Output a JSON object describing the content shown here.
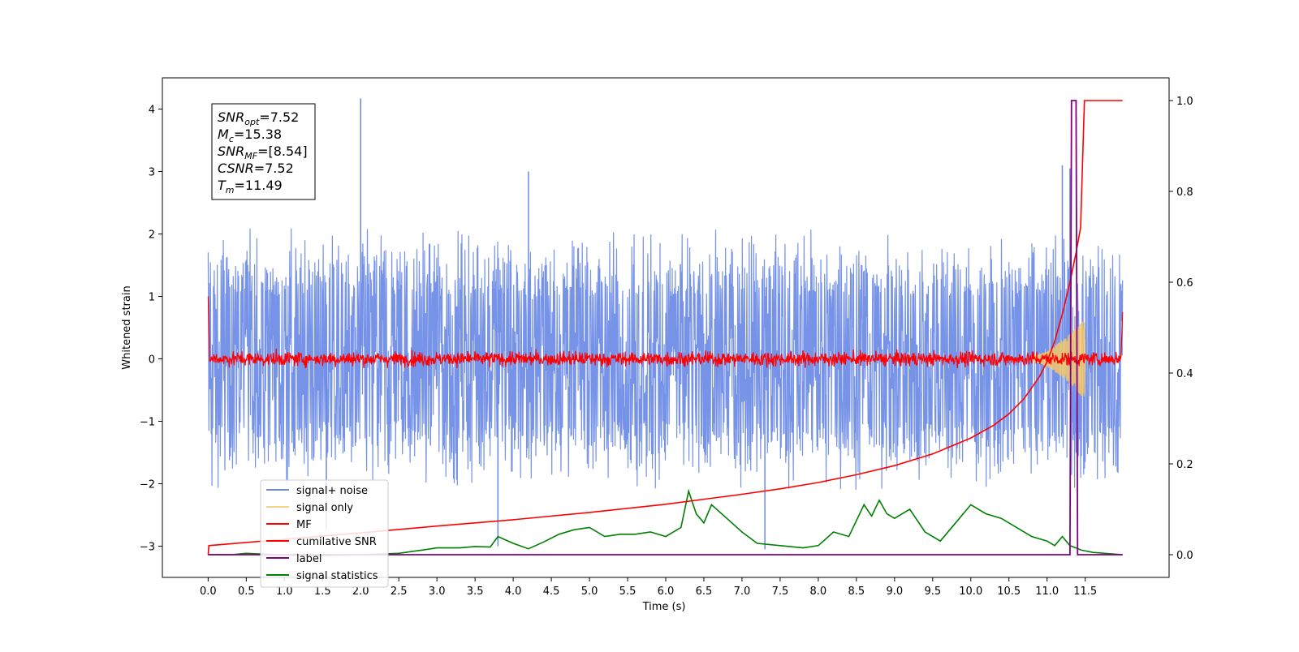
{
  "chart_data": {
    "type": "line",
    "xlabel": "Time (s)",
    "ylabel": "Whitened strain",
    "xlim": [
      -0.6,
      12.6
    ],
    "ylim": [
      -3.5,
      4.5
    ],
    "y2lim": [
      -0.05,
      1.05
    ],
    "x_ticks": [
      0.0,
      0.5,
      1.0,
      1.5,
      2.0,
      2.5,
      3.0,
      3.5,
      4.0,
      4.5,
      5.0,
      5.5,
      6.0,
      6.5,
      7.0,
      7.5,
      8.0,
      8.5,
      9.0,
      9.5,
      10.0,
      10.5,
      11.0,
      11.5
    ],
    "x_tick_labels": [
      "0.0",
      "0.5",
      "1.0",
      "1.5",
      "2.0",
      "2.5",
      "3.0",
      "3.5",
      "4.0",
      "4.5",
      "5.0",
      "5.5",
      "6.0",
      "6.5",
      "7.0",
      "7.5",
      "8.0",
      "8.5",
      "9.0",
      "9.5",
      "10.0",
      "10.5",
      "11.0",
      "11.5"
    ],
    "y_ticks": [
      -3,
      -2,
      -1,
      0,
      1,
      2,
      3,
      4
    ],
    "y_tick_labels": [
      "−3",
      "−2",
      "−1",
      "0",
      "1",
      "2",
      "3",
      "4"
    ],
    "y2_ticks": [
      0.0,
      0.2,
      0.4,
      0.6,
      0.8,
      1.0
    ],
    "y2_tick_labels": [
      "0.0",
      "0.2",
      "0.4",
      "0.6",
      "0.8",
      "1.0"
    ],
    "grid": false,
    "legend_position": "lower-left",
    "annotation_lines": [
      {
        "name": "SNR",
        "sub": "opt",
        "value": "=7.52"
      },
      {
        "name": "M",
        "sub": "c",
        "value": "=15.38"
      },
      {
        "name": "SNR",
        "sub": "MF",
        "value": "=[8.54]"
      },
      {
        "name": "CSNR",
        "sub": "",
        "value": "=7.52"
      },
      {
        "name": "T",
        "sub": "m",
        "value": "=11.49"
      }
    ],
    "series": [
      {
        "name": "signal+ noise",
        "axis": "left",
        "color": "#6a8ae6",
        "style": "dense noise band, roughly ±2.5 with spikes to about 3.0 and one spike to 4.2 near t=2.0",
        "t_range": [
          0.0,
          11.99
        ],
        "envelope_low": -2.5,
        "envelope_high": 2.5,
        "spikes": [
          [
            2.0,
            4.17
          ],
          [
            4.2,
            3.0
          ],
          [
            11.2,
            3.1
          ],
          [
            11.3,
            3.05
          ],
          [
            1.55,
            -2.75
          ],
          [
            7.3,
            -3.05
          ],
          [
            3.8,
            -3.0
          ]
        ]
      },
      {
        "name": "signal only",
        "axis": "left",
        "color": "#f5c76a",
        "style": "chirp waveform visible near the end, amplitude growing toward t=11.45",
        "t_range": [
          10.8,
          11.5
        ],
        "amplitude_points": [
          [
            10.8,
            0.03
          ],
          [
            11.0,
            0.12
          ],
          [
            11.2,
            0.3
          ],
          [
            11.35,
            0.45
          ],
          [
            11.45,
            0.6
          ]
        ]
      },
      {
        "name": "MF",
        "axis": "left",
        "color": "#ff0000",
        "style": "matched-filter output, noisy band about ±0.15 around 0",
        "t_range": [
          0.0,
          11.99
        ],
        "envelope_low": -0.15,
        "envelope_high": 0.15,
        "points": [
          [
            0.0,
            1.0
          ],
          [
            0.02,
            0.0
          ],
          [
            11.97,
            0.0
          ],
          [
            11.99,
            0.75
          ]
        ]
      },
      {
        "name": "cumilative SNR",
        "axis": "right",
        "color": "#ff0000",
        "points": [
          [
            0.0,
            0.0
          ],
          [
            0.01,
            0.02
          ],
          [
            1.0,
            0.034
          ],
          [
            2.0,
            0.048
          ],
          [
            3.0,
            0.063
          ],
          [
            4.0,
            0.077
          ],
          [
            5.0,
            0.093
          ],
          [
            6.0,
            0.111
          ],
          [
            7.0,
            0.133
          ],
          [
            7.5,
            0.145
          ],
          [
            8.0,
            0.159
          ],
          [
            8.5,
            0.176
          ],
          [
            9.0,
            0.196
          ],
          [
            9.5,
            0.222
          ],
          [
            10.0,
            0.257
          ],
          [
            10.3,
            0.285
          ],
          [
            10.5,
            0.31
          ],
          [
            10.7,
            0.344
          ],
          [
            10.9,
            0.392
          ],
          [
            11.0,
            0.425
          ],
          [
            11.1,
            0.47
          ],
          [
            11.2,
            0.53
          ],
          [
            11.3,
            0.6
          ],
          [
            11.38,
            0.665
          ],
          [
            11.44,
            0.72
          ],
          [
            11.49,
            1.0
          ],
          [
            11.99,
            1.0
          ]
        ]
      },
      {
        "name": "label",
        "axis": "right",
        "color": "#800080",
        "points": [
          [
            0.0,
            0.0
          ],
          [
            11.3,
            0.0
          ],
          [
            11.32,
            1.0
          ],
          [
            11.38,
            1.0
          ],
          [
            11.4,
            0.0
          ],
          [
            11.99,
            0.0
          ]
        ]
      },
      {
        "name": "signal statistics",
        "axis": "right",
        "color": "#008000",
        "points": [
          [
            0.0,
            0.0
          ],
          [
            0.3,
            0.0
          ],
          [
            0.5,
            0.003
          ],
          [
            0.9,
            0.0
          ],
          [
            1.5,
            -0.002
          ],
          [
            2.0,
            0.0
          ],
          [
            2.5,
            0.003
          ],
          [
            2.8,
            0.01
          ],
          [
            3.0,
            0.015
          ],
          [
            3.3,
            0.015
          ],
          [
            3.5,
            0.018
          ],
          [
            3.7,
            0.017
          ],
          [
            3.8,
            0.04
          ],
          [
            4.0,
            0.025
          ],
          [
            4.2,
            0.013
          ],
          [
            4.4,
            0.028
          ],
          [
            4.6,
            0.045
          ],
          [
            4.8,
            0.055
          ],
          [
            5.0,
            0.06
          ],
          [
            5.2,
            0.04
          ],
          [
            5.4,
            0.045
          ],
          [
            5.6,
            0.045
          ],
          [
            5.8,
            0.05
          ],
          [
            6.0,
            0.04
          ],
          [
            6.2,
            0.06
          ],
          [
            6.3,
            0.14
          ],
          [
            6.4,
            0.09
          ],
          [
            6.5,
            0.07
          ],
          [
            6.6,
            0.11
          ],
          [
            6.8,
            0.08
          ],
          [
            7.0,
            0.05
          ],
          [
            7.2,
            0.025
          ],
          [
            7.5,
            0.02
          ],
          [
            7.8,
            0.015
          ],
          [
            8.0,
            0.02
          ],
          [
            8.2,
            0.05
          ],
          [
            8.4,
            0.04
          ],
          [
            8.6,
            0.11
          ],
          [
            8.7,
            0.085
          ],
          [
            8.8,
            0.12
          ],
          [
            8.9,
            0.09
          ],
          [
            9.0,
            0.08
          ],
          [
            9.2,
            0.1
          ],
          [
            9.4,
            0.05
          ],
          [
            9.6,
            0.03
          ],
          [
            9.8,
            0.07
          ],
          [
            10.0,
            0.11
          ],
          [
            10.2,
            0.09
          ],
          [
            10.4,
            0.08
          ],
          [
            10.6,
            0.06
          ],
          [
            10.8,
            0.04
          ],
          [
            11.0,
            0.03
          ],
          [
            11.1,
            0.02
          ],
          [
            11.2,
            0.04
          ],
          [
            11.3,
            0.02
          ],
          [
            11.45,
            0.01
          ],
          [
            11.6,
            0.005
          ],
          [
            11.99,
            0.0
          ]
        ]
      }
    ]
  }
}
